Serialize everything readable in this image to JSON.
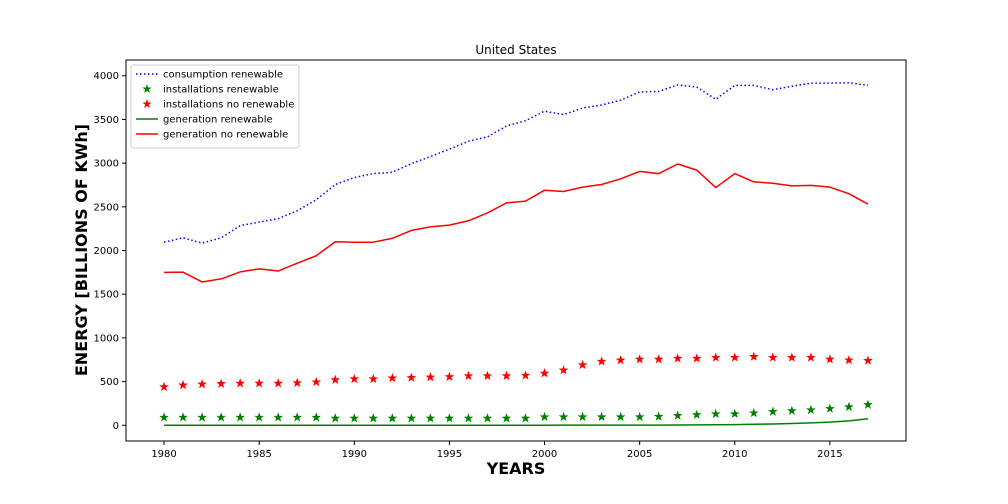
{
  "chart_data": {
    "type": "line",
    "title": "United States",
    "xlabel": "YEARS",
    "ylabel": "ENERGY [BILLIONS OF KWh]",
    "xlim": [
      1978,
      2019
    ],
    "ylim": [
      -180,
      4180
    ],
    "xticks": [
      1980,
      1985,
      1990,
      1995,
      2000,
      2005,
      2010,
      2015
    ],
    "yticks": [
      0,
      500,
      1000,
      1500,
      2000,
      2500,
      3000,
      3500,
      4000
    ],
    "grid": false,
    "legend_position": "top-left",
    "x": [
      1980,
      1981,
      1982,
      1983,
      1984,
      1985,
      1986,
      1987,
      1988,
      1989,
      1990,
      1991,
      1992,
      1993,
      1994,
      1995,
      1996,
      1997,
      1998,
      1999,
      2000,
      2001,
      2002,
      2003,
      2004,
      2005,
      2006,
      2007,
      2008,
      2009,
      2010,
      2011,
      2012,
      2013,
      2014,
      2015,
      2016,
      2017
    ],
    "series": [
      {
        "name": "consumption renewable",
        "style": "dotted-line",
        "color": "#0000ff",
        "values": [
          2095,
          2145,
          2085,
          2145,
          2285,
          2325,
          2365,
          2455,
          2580,
          2755,
          2835,
          2880,
          2895,
          2995,
          3075,
          3160,
          3250,
          3300,
          3425,
          3485,
          3595,
          3555,
          3630,
          3665,
          3720,
          3815,
          3820,
          3895,
          3870,
          3730,
          3890,
          3890,
          3840,
          3880,
          3915,
          3915,
          3920,
          3890
        ]
      },
      {
        "name": "installations renewable",
        "style": "star-markers",
        "color": "#008000",
        "values": [
          90,
          90,
          90,
          90,
          90,
          90,
          90,
          90,
          90,
          80,
          80,
          80,
          80,
          80,
          80,
          80,
          80,
          80,
          80,
          80,
          95,
          95,
          95,
          95,
          95,
          95,
          100,
          110,
          120,
          130,
          130,
          140,
          155,
          165,
          175,
          190,
          210,
          235
        ]
      },
      {
        "name": "installations no renewable",
        "style": "star-markers",
        "color": "#ff0000",
        "values": [
          440,
          460,
          470,
          475,
          480,
          480,
          480,
          485,
          495,
          520,
          530,
          530,
          540,
          545,
          550,
          555,
          565,
          565,
          565,
          570,
          595,
          630,
          690,
          730,
          745,
          755,
          755,
          765,
          765,
          775,
          775,
          785,
          775,
          775,
          775,
          755,
          745,
          740
        ]
      },
      {
        "name": "generation renewable",
        "style": "solid-line",
        "color": "#008000",
        "values": [
          0,
          0,
          0,
          0,
          0,
          0,
          0,
          0,
          0,
          0,
          0,
          0,
          0,
          0,
          0,
          0,
          0,
          0,
          0,
          0,
          0,
          1,
          1,
          1,
          1,
          1,
          2,
          3,
          4,
          6,
          8,
          11,
          15,
          20,
          27,
          36,
          50,
          75
        ]
      },
      {
        "name": "generation no renewable",
        "style": "solid-line",
        "color": "#ff0000",
        "values": [
          1750,
          1752,
          1640,
          1675,
          1755,
          1790,
          1765,
          1855,
          1940,
          2100,
          2095,
          2095,
          2140,
          2230,
          2270,
          2290,
          2340,
          2430,
          2545,
          2565,
          2690,
          2675,
          2725,
          2755,
          2820,
          2905,
          2880,
          2990,
          2920,
          2720,
          2880,
          2785,
          2770,
          2740,
          2745,
          2725,
          2650,
          2530
        ]
      }
    ]
  }
}
